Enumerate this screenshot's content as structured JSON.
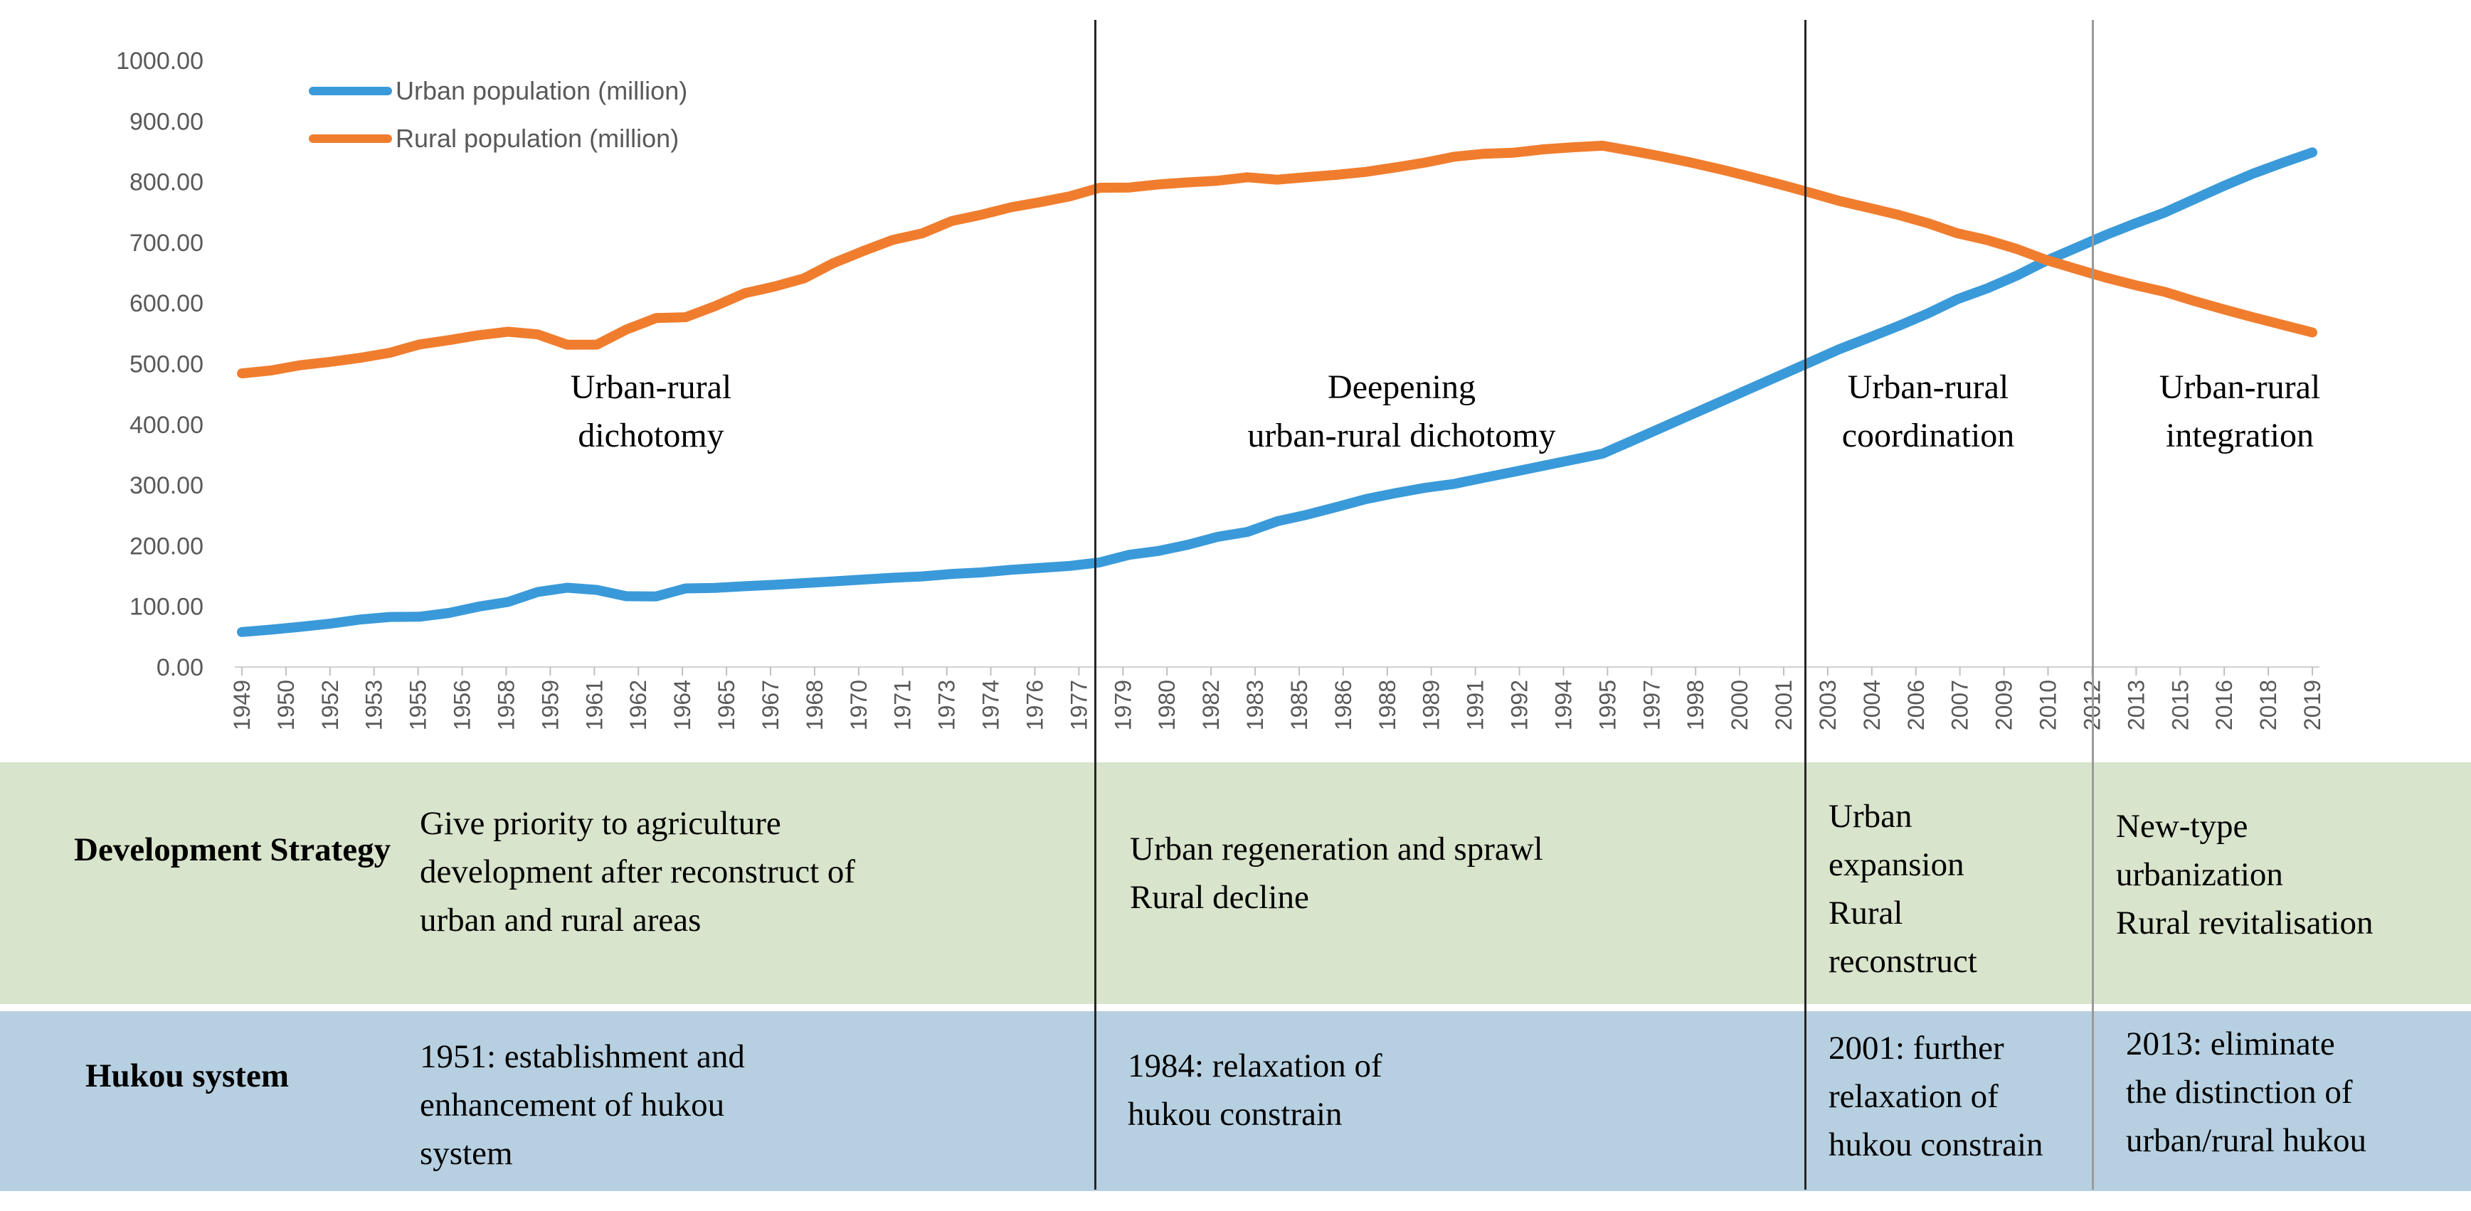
{
  "chart_data": {
    "type": "line",
    "title": "",
    "xlabel": "",
    "ylabel": "",
    "ylim": [
      0,
      1000
    ],
    "yticks": [
      "1000.00",
      "900.00",
      "800.00",
      "700.00",
      "600.00",
      "500.00",
      "400.00",
      "300.00",
      "200.00",
      "100.00",
      "0.00"
    ],
    "x_tick_labels": [
      "1949",
      "1950",
      "1952",
      "1953",
      "1955",
      "1956",
      "1958",
      "1959",
      "1961",
      "1962",
      "1964",
      "1965",
      "1967",
      "1968",
      "1970",
      "1971",
      "1973",
      "1974",
      "1976",
      "1977",
      "1979",
      "1980",
      "1982",
      "1983",
      "1985",
      "1986",
      "1988",
      "1989",
      "1991",
      "1992",
      "1994",
      "1995",
      "1997",
      "1998",
      "2000",
      "2001",
      "2003",
      "2004",
      "2006",
      "2007",
      "2009",
      "2010",
      "2012",
      "2013",
      "2015",
      "2016",
      "2018",
      "2019"
    ],
    "x": [
      1949,
      1950,
      1951,
      1952,
      1953,
      1954,
      1955,
      1956,
      1957,
      1958,
      1959,
      1960,
      1961,
      1962,
      1963,
      1964,
      1965,
      1966,
      1967,
      1968,
      1969,
      1970,
      1971,
      1972,
      1973,
      1974,
      1975,
      1976,
      1977,
      1978,
      1979,
      1980,
      1981,
      1982,
      1983,
      1984,
      1985,
      1986,
      1987,
      1988,
      1989,
      1990,
      1991,
      1992,
      1993,
      1994,
      1995,
      1996,
      1997,
      1998,
      1999,
      2000,
      2001,
      2002,
      2003,
      2004,
      2005,
      2006,
      2007,
      2008,
      2009,
      2010,
      2011,
      2012,
      2013,
      2014,
      2015,
      2016,
      2017,
      2018,
      2019
    ],
    "series": [
      {
        "name": "Urban population (million)",
        "color": "#3a9ad9",
        "values": [
          57.65,
          61.69,
          66.32,
          71.63,
          78.26,
          82.49,
          82.85,
          89.15,
          99.49,
          107.21,
          123.71,
          130.73,
          127.07,
          116.59,
          116.46,
          129.5,
          130.45,
          133.13,
          135.48,
          138.38,
          141.17,
          144.24,
          147.11,
          149.35,
          153.45,
          155.95,
          160.3,
          163.41,
          166.69,
          172.45,
          184.95,
          191.4,
          201.71,
          214.8,
          222.74,
          240.17,
          250.94,
          263.66,
          276.74,
          286.61,
          295.4,
          301.95,
          312.03,
          321.75,
          331.73,
          341.69,
          351.74,
          373.04,
          394.49,
          416.08,
          437.48,
          459.06,
          480.64,
          502.12,
          523.76,
          542.83,
          562.12,
          582.88,
          606.33,
          624.03,
          645.12,
          669.78,
          690.79,
          711.82,
          731.11,
          749.16,
          771.16,
          793.02,
          813.47,
          831.37,
          848.43
        ]
      },
      {
        "name": "Rural population (million)",
        "color": "#f07d2e",
        "values": [
          484.02,
          489.02,
          497.72,
          503.19,
          509.7,
          518.01,
          531.8,
          538.96,
          547.04,
          552.73,
          548.36,
          531.34,
          531.52,
          556.36,
          575.26,
          576.69,
          594.93,
          616.29,
          627.2,
          640.63,
          665.89,
          685.68,
          704.07,
          714.87,
          735.34,
          745.59,
          757.96,
          766.45,
          776.05,
          790.14,
          790.47,
          795.65,
          799.01,
          801.74,
          807.34,
          803.4,
          807.57,
          811.41,
          816.26,
          823.65,
          831.64,
          841.38,
          846.2,
          848.0,
          853.44,
          856.81,
          859.47,
          850.85,
          841.77,
          831.53,
          820.38,
          808.37,
          795.63,
          782.41,
          768.51,
          757.05,
          745.44,
          731.6,
          714.96,
          703.99,
          689.38,
          671.13,
          656.56,
          642.22,
          629.61,
          618.66,
          603.46,
          589.73,
          576.61,
          564.01,
          551.62
        ]
      }
    ],
    "legend_position": "top-left"
  },
  "phases": [
    "Urban-rural\ndichotomy",
    "Deepening\nurban-rural dichotomy",
    "Urban-rural\ncoordination",
    "Urban-rural\nintegration"
  ],
  "table": {
    "rows": [
      {
        "label": "Development\nStrategy",
        "cells": [
          "Give priority to agriculture\ndevelopment after reconstruct of\nurban and rural areas",
          "Urban regeneration and sprawl\nRural decline",
          "Urban\nexpansion\nRural\nreconstruct",
          "New-type\nurbanization\nRural revitalisation"
        ]
      },
      {
        "label": "Hukou\nsystem",
        "cells": [
          "1951: establishment and\nenhancement of  hukou\nsystem",
          "1984: relaxation of\nhukou constrain",
          "2001: further\nrelaxation of\nhukou constrain",
          "2013: eliminate\nthe distinction of\nurban/rural hukou"
        ]
      }
    ]
  },
  "colors": {
    "green_band": "#d8e4cb",
    "blue_band": "#b7d0e1"
  }
}
